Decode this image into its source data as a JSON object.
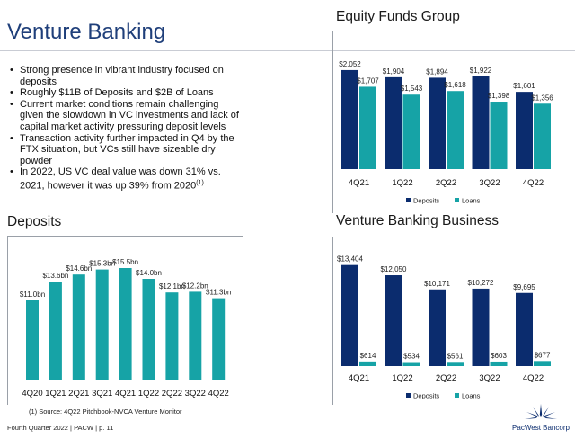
{
  "page_title": "Venture Banking",
  "bullets": [
    "Strong presence in vibrant industry focused on deposits",
    "Roughly $11B of Deposits and $2B of Loans",
    "Current market conditions remain challenging given the slowdown in VC investments and lack of capital market activity pressuring deposit levels",
    "Transaction activity further impacted in Q4 by the FTX situation, but VCs still have sizeable dry powder"
  ],
  "bullet_last": "In 2022, US VC deal value was down 31% vs. 2021, however it was up 39% from 2020",
  "bullet_last_sup": "(1)",
  "footnote": "(1) Source: 4Q22 Pitchbook-NVCA Venture Monitor",
  "footer": "Fourth Quarter 2022 | PACW | p. 11",
  "logo_text": "PacWest Bancorp",
  "colors": {
    "navy": "#0b2c6e",
    "teal": "#16a3a6",
    "title_blue": "#1f3f7a"
  },
  "chart_data": [
    {
      "type": "bar",
      "title": "Deposits",
      "categories": [
        "4Q20",
        "1Q21",
        "2Q21",
        "3Q21",
        "4Q21",
        "1Q22",
        "2Q22",
        "3Q22",
        "4Q22"
      ],
      "series": [
        {
          "name": "Deposits",
          "values": [
            11.0,
            13.6,
            14.6,
            15.3,
            15.5,
            14.0,
            12.1,
            12.2,
            11.3
          ]
        }
      ],
      "data_labels": [
        "$11.0bn",
        "$13.6bn",
        "$14.6bn",
        "$15.3bn",
        "$15.5bn",
        "$14.0bn",
        "$12.1bn",
        "$12.2bn",
        "$11.3bn"
      ],
      "ylim": [
        0,
        17.5
      ],
      "color": "#16a3a6"
    },
    {
      "type": "bar",
      "title": "Equity Funds Group",
      "categories": [
        "4Q21",
        "1Q22",
        "2Q22",
        "3Q22",
        "4Q22"
      ],
      "series": [
        {
          "name": "Deposits",
          "values": [
            2052,
            1904,
            1894,
            1922,
            1601
          ]
        },
        {
          "name": "Loans",
          "values": [
            1707,
            1543,
            1618,
            1398,
            1356
          ]
        }
      ],
      "data_labels": {
        "Deposits": [
          "$2,052",
          "$1,904",
          "$1,894",
          "$1,922",
          "$1,601"
        ],
        "Loans": [
          "$1,707",
          "$1,543",
          "$1,618",
          "$1,398",
          "$1,356"
        ]
      },
      "legend": [
        "Deposits",
        "Loans"
      ],
      "ylim": [
        0,
        2200
      ]
    },
    {
      "type": "bar",
      "title": "Venture Banking Business",
      "categories": [
        "4Q21",
        "1Q22",
        "2Q22",
        "3Q22",
        "4Q22"
      ],
      "series": [
        {
          "name": "Deposits",
          "values": [
            13404,
            12050,
            10171,
            10272,
            9695
          ]
        },
        {
          "name": "Loans",
          "values": [
            614,
            534,
            561,
            603,
            677
          ]
        }
      ],
      "data_labels": {
        "Deposits": [
          "$13,404",
          "$12,050",
          "$10,171",
          "$10,272",
          "$9,695"
        ],
        "Loans": [
          "$614",
          "$534",
          "$561",
          "$603",
          "$677"
        ]
      },
      "legend": [
        "Deposits",
        "Loans"
      ],
      "ylim": [
        0,
        14200
      ]
    }
  ]
}
